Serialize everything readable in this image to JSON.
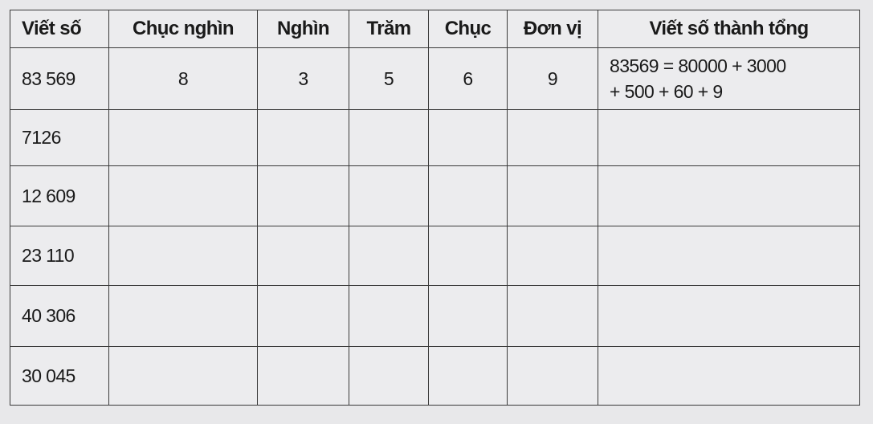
{
  "table": {
    "headers": [
      "Viết số",
      "Chục nghìn",
      "Nghìn",
      "Trăm",
      "Chục",
      "Đơn vị",
      "Viết số thành tổng"
    ],
    "rows": [
      {
        "number": "83 569",
        "chuc_nghin": "8",
        "nghin": "3",
        "tram": "5",
        "chuc": "6",
        "don_vi": "9",
        "sum_line1": "83569 = 80000 + 3000",
        "sum_line2": "+ 500 + 60 + 9"
      },
      {
        "number": "7126",
        "chuc_nghin": "",
        "nghin": "",
        "tram": "",
        "chuc": "",
        "don_vi": "",
        "sum_line1": "",
        "sum_line2": ""
      },
      {
        "number": "12 609",
        "chuc_nghin": "",
        "nghin": "",
        "tram": "",
        "chuc": "",
        "don_vi": "",
        "sum_line1": "",
        "sum_line2": ""
      },
      {
        "number": "23 110",
        "chuc_nghin": "",
        "nghin": "",
        "tram": "",
        "chuc": "",
        "don_vi": "",
        "sum_line1": "",
        "sum_line2": ""
      },
      {
        "number": "40 306",
        "chuc_nghin": "",
        "nghin": "",
        "tram": "",
        "chuc": "",
        "don_vi": "",
        "sum_line1": "",
        "sum_line2": ""
      },
      {
        "number": "30 045",
        "chuc_nghin": "",
        "nghin": "",
        "tram": "",
        "chuc": "",
        "don_vi": "",
        "sum_line1": "",
        "sum_line2": ""
      }
    ]
  }
}
